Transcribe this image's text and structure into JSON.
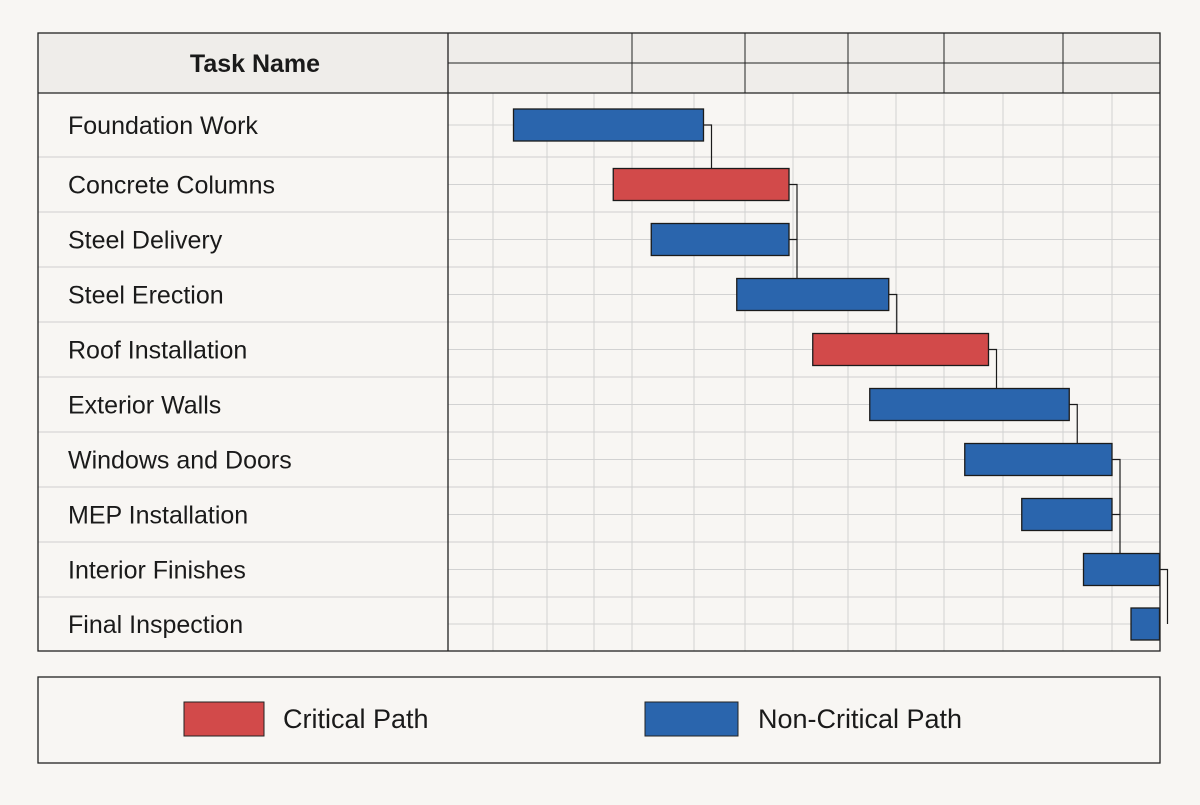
{
  "chart_data": {
    "type": "gantt",
    "header": {
      "task_column_label": "Task Name"
    },
    "tasks": [
      {
        "name": "Foundation Work",
        "start": 1.0,
        "end": 5.0,
        "critical": false
      },
      {
        "name": "Concrete Columns",
        "start": 3.1,
        "end": 6.8,
        "critical": true
      },
      {
        "name": "Steel Delivery",
        "start": 3.9,
        "end": 6.8,
        "critical": false
      },
      {
        "name": "Steel Erection",
        "start": 5.7,
        "end": 8.9,
        "critical": false
      },
      {
        "name": "Roof Installation",
        "start": 7.3,
        "end": 11.0,
        "critical": true
      },
      {
        "name": "Exterior Walls",
        "start": 8.5,
        "end": 12.7,
        "critical": false
      },
      {
        "name": "Windows and Doors",
        "start": 10.5,
        "end": 13.6,
        "critical": false
      },
      {
        "name": "MEP Installation",
        "start": 11.7,
        "end": 13.6,
        "critical": false
      },
      {
        "name": "Interior Finishes",
        "start": 13.0,
        "end": 14.6,
        "critical": false
      },
      {
        "name": "Final Inspection",
        "start": 14.0,
        "end": 14.6,
        "critical": false
      }
    ],
    "dependencies": [
      [
        0,
        1
      ],
      [
        1,
        2
      ],
      [
        2,
        3
      ],
      [
        3,
        4
      ],
      [
        4,
        5
      ],
      [
        5,
        6
      ],
      [
        6,
        7
      ],
      [
        7,
        8
      ],
      [
        8,
        9
      ]
    ],
    "legend": [
      {
        "label": "Critical Path",
        "color": "#d24a4a"
      },
      {
        "label": "Non-Critical Path",
        "color": "#2a65ad"
      }
    ],
    "legend_position": "bottom",
    "grid": true,
    "colors": {
      "critical": "#d24a4a",
      "non_critical": "#2a65ad",
      "grid": "#d2d2d2",
      "border": "#222222"
    }
  }
}
